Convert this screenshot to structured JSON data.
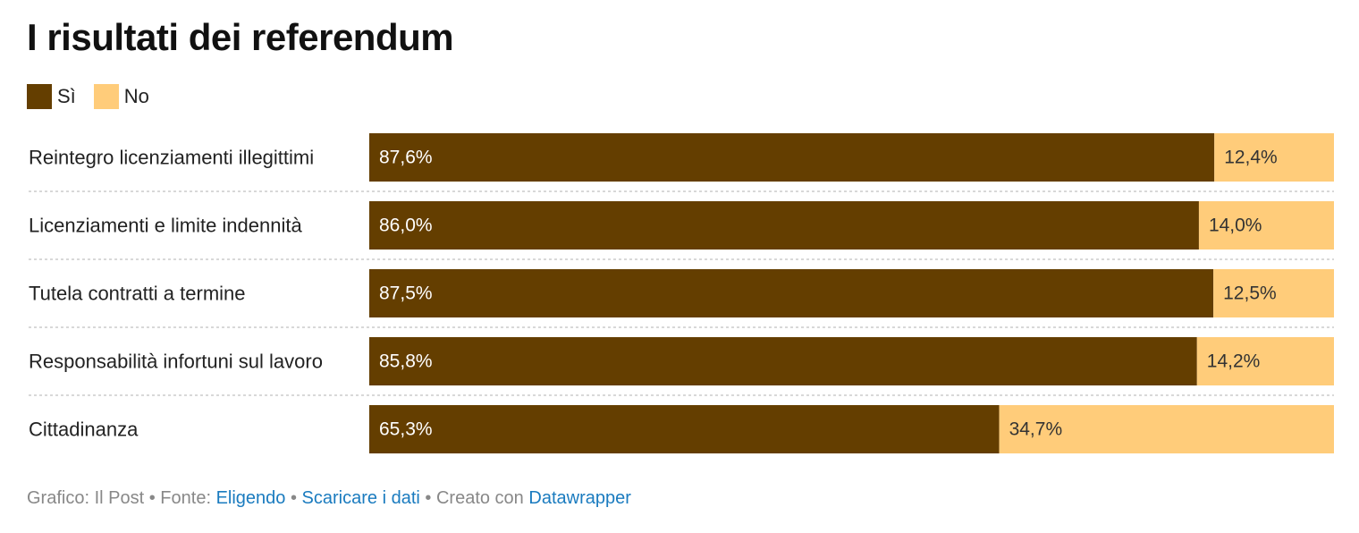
{
  "header": {
    "title": "I risultati dei referendum"
  },
  "legend": [
    {
      "label": "Sì",
      "color": "#643e00"
    },
    {
      "label": "No",
      "color": "#ffcc7a"
    }
  ],
  "chart_data": {
    "type": "bar",
    "orientation": "horizontal",
    "stacked": true,
    "percent_stacked": true,
    "title": "I risultati dei referendum",
    "categories": [
      "Reintegro licenziamenti illegittimi",
      "Licenziamenti e limite indennità",
      "Tutela contratti a termine",
      "Responsabilità infortuni sul lavoro",
      "Cittadinanza"
    ],
    "series": [
      {
        "name": "Sì",
        "color": "#643e00",
        "values": [
          87.6,
          86.0,
          87.5,
          85.8,
          65.3
        ],
        "labels": [
          "87,6%",
          "86,0%",
          "87,5%",
          "85,8%",
          "65,3%"
        ]
      },
      {
        "name": "No",
        "color": "#ffcc7a",
        "values": [
          12.4,
          14.0,
          12.5,
          14.2,
          34.7
        ],
        "labels": [
          "12,4%",
          "14,0%",
          "12,5%",
          "14,2%",
          "34,7%"
        ]
      }
    ],
    "xlim": [
      0,
      100
    ],
    "legend_position": "top-left",
    "grid": false
  },
  "footer": {
    "credit": "Grafico: Il Post",
    "source_prefix": "Fonte:",
    "source_link": "Eligendo",
    "download_link": "Scaricare i dati",
    "made_with": "Creato con",
    "made_with_link": "Datawrapper",
    "separator": "•"
  }
}
